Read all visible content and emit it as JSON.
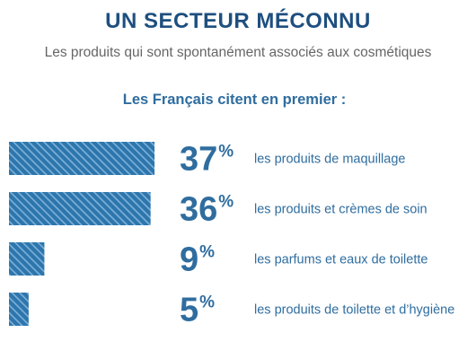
{
  "header": {
    "title": "UN SECTEUR MÉCONNU",
    "subtitle": "Les produits qui sont spontanément associés aux cosmétiques",
    "lead": "Les Français citent en premier :"
  },
  "colors": {
    "title": "#1e4f7f",
    "accent": "#2f6d9f",
    "bar": "#2d76ad",
    "bar_stripe": "#7fb1d8",
    "subtitle": "#666666"
  },
  "chart_data": {
    "type": "bar",
    "orientation": "horizontal",
    "value_suffix": "%",
    "categories": [
      "les produits de maquillage",
      "les produits et crèmes de soin",
      "les parfums et eaux de toilette",
      "les produits de toilette et d’hygiène"
    ],
    "values": [
      37,
      36,
      9,
      5
    ],
    "value_labels": [
      "37",
      "36",
      "9",
      "5"
    ],
    "grid": false,
    "legend": "none"
  }
}
